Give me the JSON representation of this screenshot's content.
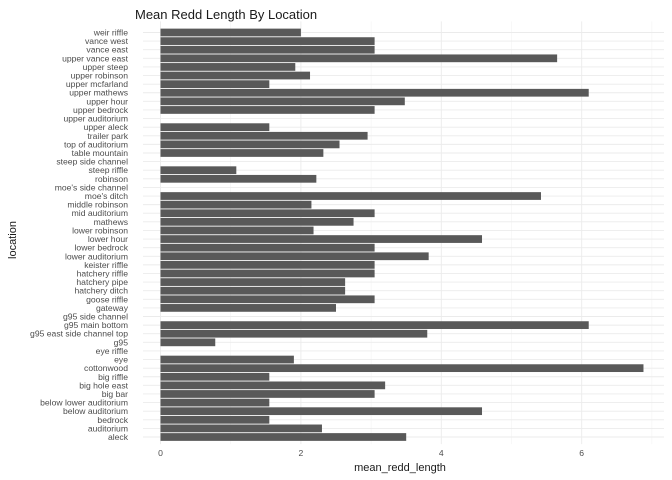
{
  "chart_data": {
    "type": "bar",
    "orientation": "horizontal",
    "title": "Mean Redd Length By Location",
    "xlabel": "mean_redd_length",
    "ylabel": "location",
    "xlim": [
      0,
      6.9
    ],
    "xticks": [
      0,
      2,
      4,
      6
    ],
    "grid": true,
    "bar_color": "#595959",
    "categories": [
      "aleck",
      "auditorium",
      "bedrock",
      "below auditorium",
      "below lower auditorium",
      "big bar",
      "big hole east",
      "big riffle",
      "cottonwood",
      "eye",
      "eye riffle",
      "g95",
      "g95 east side channel top",
      "g95 main bottom",
      "g95 side channel",
      "gateway",
      "goose riffle",
      "hatchery ditch",
      "hatchery pipe",
      "hatchery riffle",
      "keister riffle",
      "lower auditorium",
      "lower bedrock",
      "lower hour",
      "lower robinson",
      "mathews",
      "mid auditorium",
      "middle robinson",
      "moe's ditch",
      "moe's side channel",
      "robinson",
      "steep riffle",
      "steep side channel",
      "table mountain",
      "top of auditorium",
      "trailer park",
      "upper aleck",
      "upper auditorium",
      "upper bedrock",
      "upper hour",
      "upper mathews",
      "upper mcfarland",
      "upper robinson",
      "upper steep",
      "upper vance east",
      "vance east",
      "vance west",
      "weir riffle"
    ],
    "values": [
      3.5,
      2.3,
      1.55,
      4.58,
      1.55,
      3.05,
      3.2,
      1.55,
      6.88,
      1.9,
      0,
      0.78,
      3.8,
      6.1,
      0,
      2.5,
      3.05,
      2.63,
      2.63,
      3.05,
      3.05,
      3.82,
      3.05,
      4.58,
      2.18,
      2.75,
      3.05,
      2.15,
      5.42,
      0,
      2.22,
      1.08,
      0,
      2.32,
      2.55,
      2.95,
      1.55,
      0,
      3.05,
      3.48,
      6.1,
      1.55,
      2.13,
      1.92,
      5.65,
      3.05,
      3.05,
      2.0
    ]
  }
}
